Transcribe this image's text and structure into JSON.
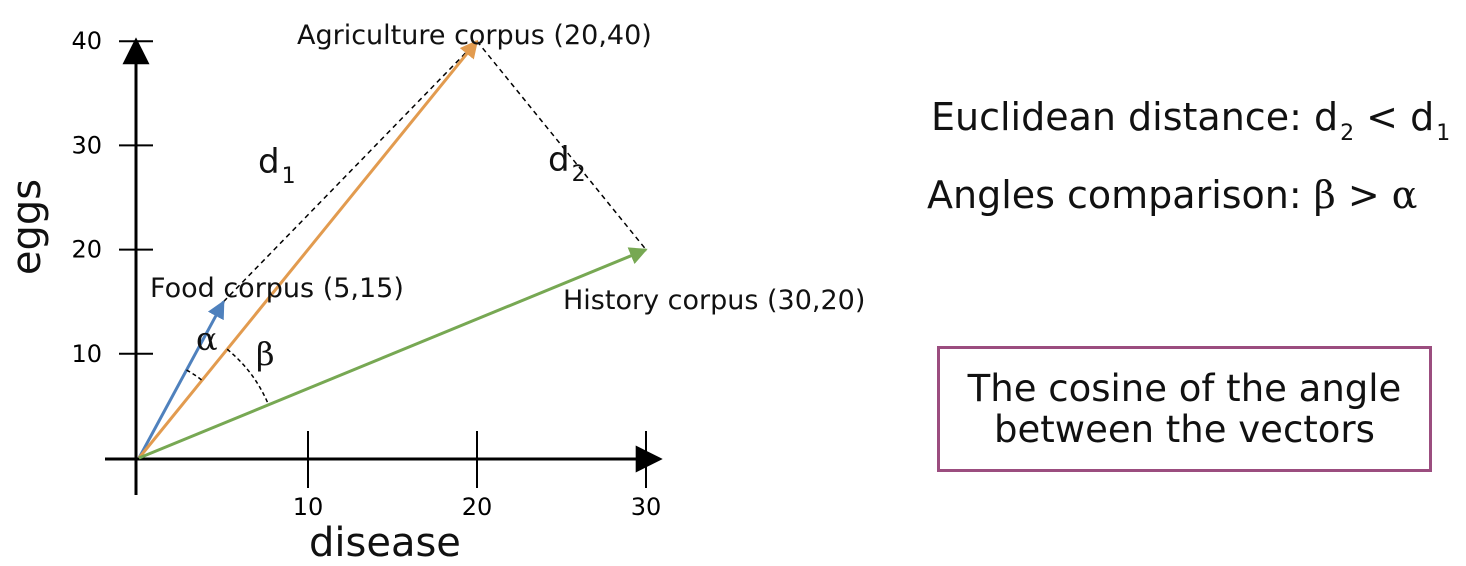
{
  "diagram": {
    "x_axis_label": "disease",
    "y_axis_label": "eggs",
    "x_ticks": [
      10,
      20,
      30
    ],
    "y_ticks": [
      10,
      20,
      30,
      40
    ],
    "vectors": [
      {
        "name": "Food corpus",
        "label": "Food corpus (5,15)",
        "x": 5,
        "y": 15,
        "color": "#4f81bd"
      },
      {
        "name": "Agriculture corpus",
        "label": "Agriculture corpus (20,40)",
        "x": 20,
        "y": 40,
        "color": "#e29b4f"
      },
      {
        "name": "History corpus",
        "label": "History corpus (30,20)",
        "x": 30,
        "y": 20,
        "color": "#77a853"
      }
    ],
    "distance_labels": {
      "d1_main": "d",
      "d1_sub": "1",
      "d2_main": "d",
      "d2_sub": "2"
    },
    "angle_labels": {
      "alpha": "α",
      "beta": "β"
    }
  },
  "notes": {
    "euclidean_prefix": "Euclidean distance: d",
    "euclidean_sub_a": "2",
    "euclidean_mid": " < d",
    "euclidean_sub_b": "1",
    "angles_prefix": "Angles comparison: ",
    "angles_beta": "β",
    "angles_mid": " > ",
    "angles_alpha": "α"
  },
  "callout": {
    "line1": "The cosine of the angle",
    "line2": "between the vectors",
    "border_color": "#9b4d7f"
  }
}
